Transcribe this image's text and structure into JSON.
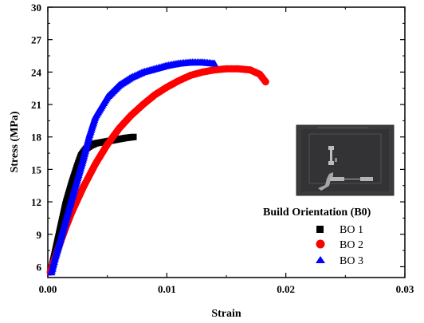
{
  "chart_data": {
    "type": "scatter",
    "title": "",
    "xlabel": "Strain",
    "ylabel": "Stress (MPa)",
    "xlim": [
      0,
      0.03
    ],
    "ylim": [
      5,
      30
    ],
    "xticks": [
      0.0,
      0.01,
      0.02,
      0.03
    ],
    "xtick_labels": [
      "0.00",
      "0.01",
      "0.02",
      "0.03"
    ],
    "yticks": [
      6,
      9,
      12,
      15,
      18,
      21,
      24,
      27,
      30
    ],
    "ytick_labels": [
      "6",
      "9",
      "12",
      "15",
      "18",
      "21",
      "24",
      "27",
      "30"
    ],
    "grid": false,
    "legend": {
      "title": "Build Orientation (B0)",
      "position": "right"
    },
    "series": [
      {
        "name": "BO 1",
        "marker": "square",
        "color": "#000000",
        "x": [
          0.0003,
          0.0006,
          0.001,
          0.0015,
          0.002,
          0.0025,
          0.0028,
          0.0032,
          0.0036,
          0.004,
          0.0045,
          0.005,
          0.0055,
          0.006,
          0.0065,
          0.0072
        ],
        "y": [
          5.8,
          7.3,
          9.3,
          11.8,
          13.7,
          15.4,
          16.3,
          16.9,
          17.2,
          17.4,
          17.5,
          17.6,
          17.7,
          17.8,
          17.9,
          18.0
        ]
      },
      {
        "name": "BO 2",
        "marker": "circle",
        "color": "#ff0000",
        "x": [
          0.0002,
          0.0006,
          0.001,
          0.0015,
          0.002,
          0.003,
          0.004,
          0.005,
          0.006,
          0.007,
          0.008,
          0.009,
          0.01,
          0.011,
          0.012,
          0.013,
          0.014,
          0.015,
          0.016,
          0.017,
          0.0178,
          0.0183
        ],
        "y": [
          5.5,
          6.8,
          8.1,
          9.6,
          11.0,
          13.4,
          15.5,
          17.3,
          18.8,
          20.0,
          21.0,
          21.9,
          22.6,
          23.2,
          23.7,
          24.0,
          24.2,
          24.3,
          24.3,
          24.2,
          23.8,
          23.1
        ]
      },
      {
        "name": "BO 3",
        "marker": "triangle",
        "color": "#0000ff",
        "x": [
          0.0003,
          0.0006,
          0.001,
          0.0015,
          0.002,
          0.0025,
          0.003,
          0.0035,
          0.004,
          0.005,
          0.006,
          0.007,
          0.008,
          0.009,
          0.01,
          0.011,
          0.012,
          0.013,
          0.014
        ],
        "y": [
          5.5,
          6.8,
          8.3,
          10.3,
          12.3,
          14.2,
          16.1,
          18.2,
          19.9,
          21.7,
          22.8,
          23.5,
          24.0,
          24.3,
          24.6,
          24.8,
          24.9,
          24.9,
          24.8
        ]
      }
    ]
  },
  "legend_labels": {
    "title": "Build Orientation (B0)",
    "bo1": "BO 1",
    "bo2": "BO 2",
    "bo3": "BO 3"
  },
  "inset_image": {
    "description_icon": "specimen-inset-image",
    "background": "#3a3a3a"
  }
}
